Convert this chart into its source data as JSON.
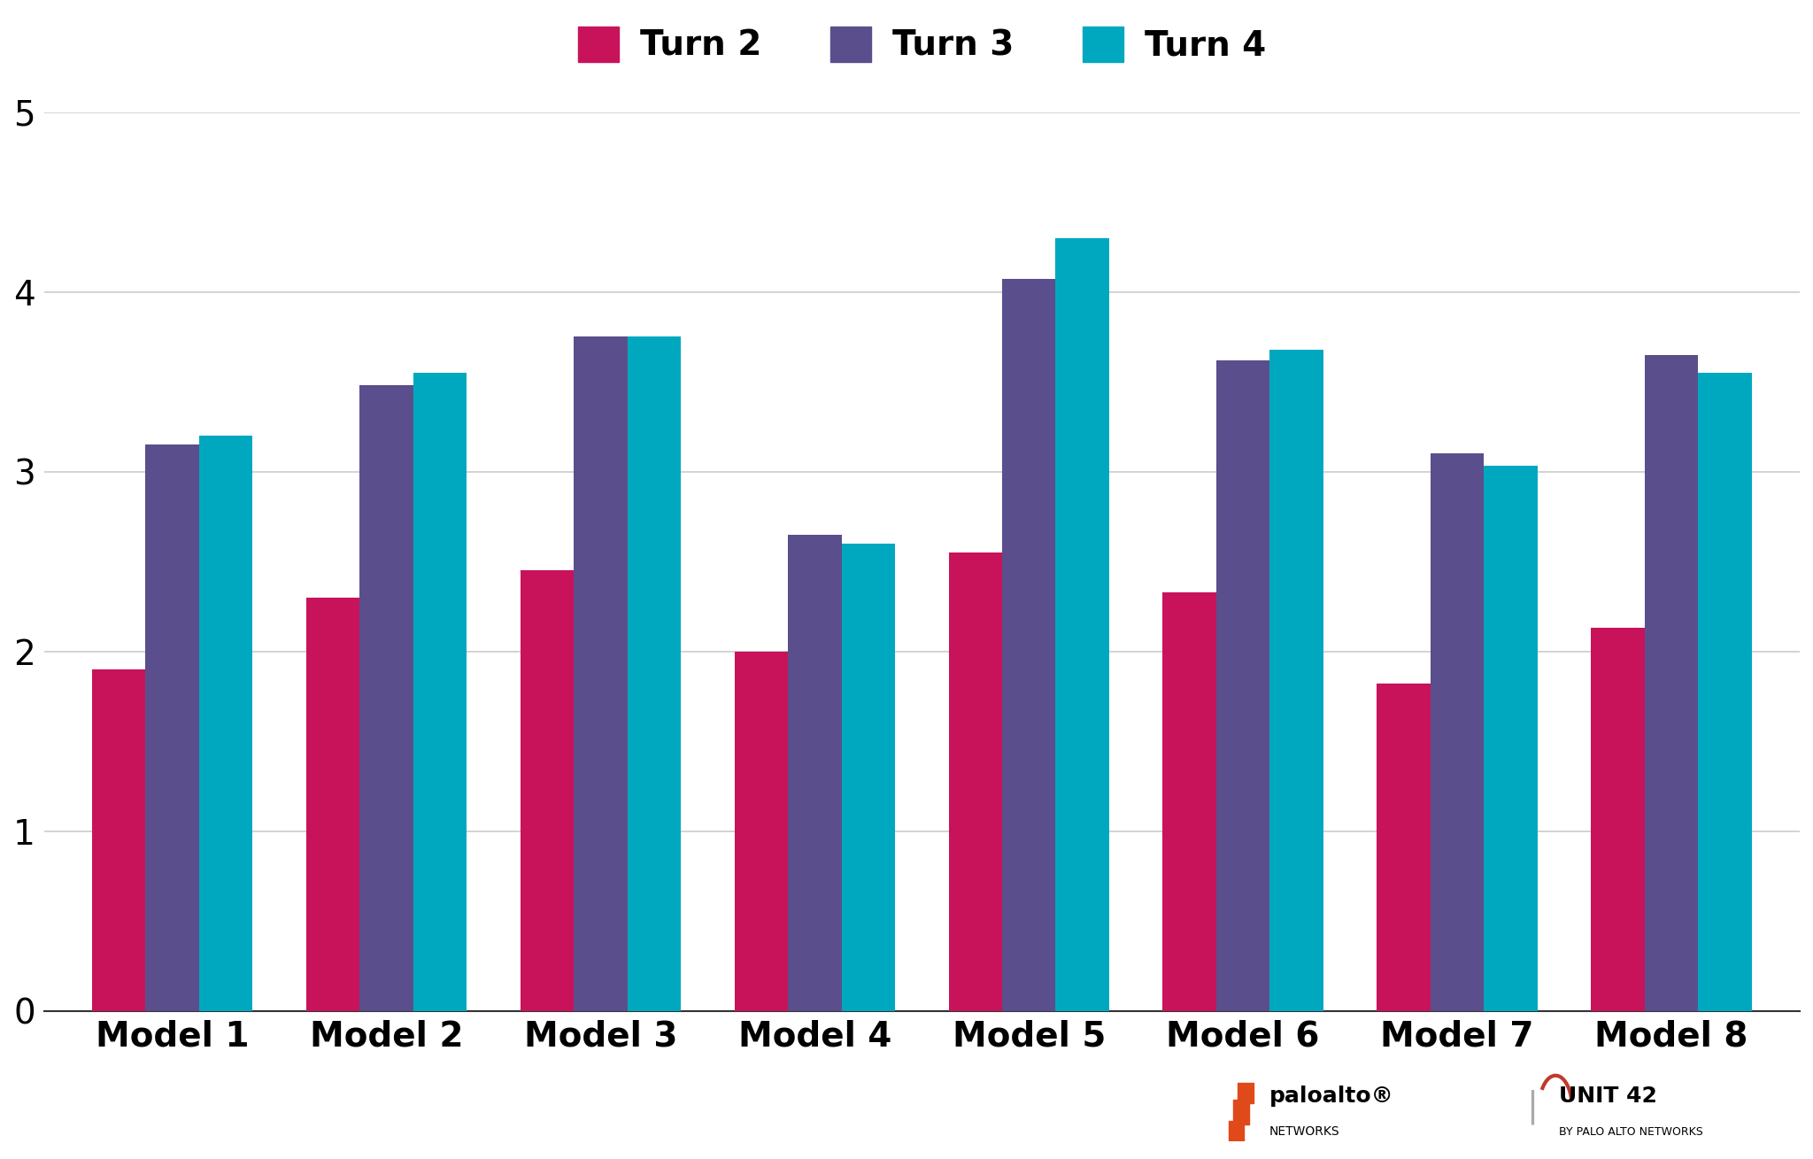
{
  "models": [
    "Model 1",
    "Model 2",
    "Model 3",
    "Model 4",
    "Model 5",
    "Model 6",
    "Model 7",
    "Model 8"
  ],
  "turn2": [
    1.9,
    2.3,
    2.45,
    2.0,
    2.55,
    2.33,
    1.82,
    2.13
  ],
  "turn3": [
    3.15,
    3.48,
    3.75,
    2.65,
    4.07,
    3.62,
    3.1,
    3.65
  ],
  "turn4": [
    3.2,
    3.55,
    3.75,
    2.6,
    4.3,
    3.68,
    3.03,
    3.55
  ],
  "color_turn2": "#C8135A",
  "color_turn3": "#5B4E8C",
  "color_turn4": "#00A8BF",
  "ylim": [
    0,
    5
  ],
  "yticks": [
    0,
    1,
    2,
    3,
    4,
    5
  ],
  "legend_labels": [
    "Turn 2",
    "Turn 3",
    "Turn 4"
  ],
  "background_color": "#FFFFFF",
  "grid_color": "#CCCCCC",
  "bar_width": 0.25,
  "legend_fontsize": 28,
  "tick_fontsize": 28,
  "logo_text_palo": "paloalto®",
  "logo_text_networks": "NETWORKS",
  "logo_text_unit": "UNIT 42",
  "logo_text_unit_sub": "BY PALO ALTO NETWORKS"
}
